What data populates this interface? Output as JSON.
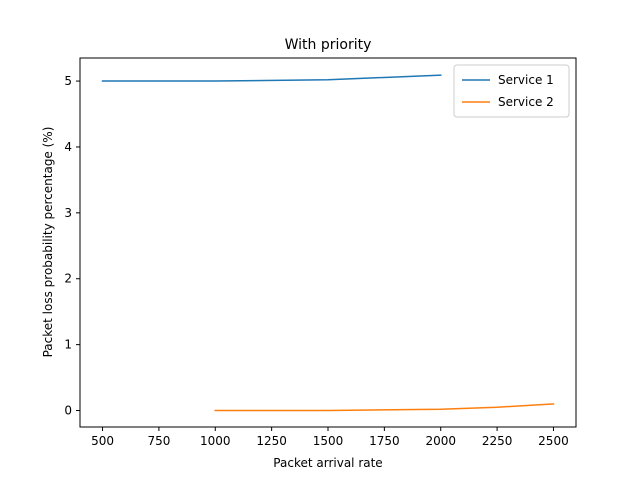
{
  "chart_data": {
    "type": "line",
    "title": "With priority",
    "xlabel": "Packet arrival rate",
    "ylabel": "Packet loss probability percentage (%)",
    "xlim": [
      400,
      2600
    ],
    "ylim": [
      -0.25,
      5.35
    ],
    "xticks": [
      500,
      750,
      1000,
      1250,
      1500,
      1750,
      2000,
      2250,
      2500
    ],
    "yticks": [
      0,
      1,
      2,
      3,
      4,
      5
    ],
    "grid": false,
    "legend": "top-right",
    "series": [
      {
        "name": "Service 1",
        "color": "#1f77b4",
        "x": [
          500,
          1000,
          1500,
          2000
        ],
        "y": [
          5.0,
          5.0,
          5.02,
          5.09
        ]
      },
      {
        "name": "Service 2",
        "color": "#ff7f0e",
        "x": [
          1000,
          1500,
          2000,
          2250,
          2500
        ],
        "y": [
          0.0,
          0.0,
          0.02,
          0.05,
          0.1
        ]
      }
    ]
  }
}
